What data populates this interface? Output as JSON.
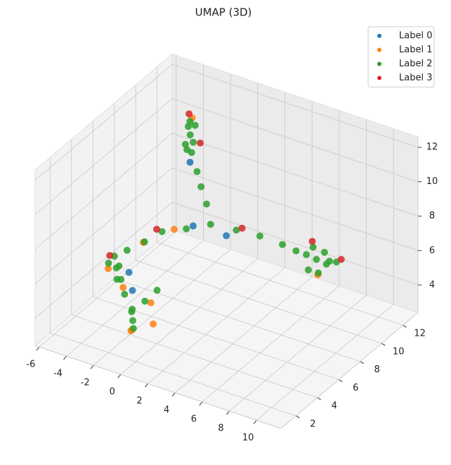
{
  "chart_data": {
    "type": "scatter3d",
    "title": "UMAP (3D)",
    "series": [
      {
        "name": "Label 0",
        "color": "#1f77b4",
        "x": [
          -1.2,
          -0.5,
          -1.5,
          1,
          -2.7
        ],
        "y": [
          8.6,
          8,
          3.6,
          9.2,
          4.8
        ],
        "z": [
          10.2,
          7,
          5.3,
          6.2,
          5.4
        ]
      },
      {
        "name": "Label 1",
        "color": "#ff7f0e",
        "x": [
          -1,
          -0.9,
          -2.5,
          -0.3,
          -3.6,
          -1.5,
          -1.6,
          7.5,
          0.5,
          -2.2
        ],
        "y": [
          2.9,
          2.7,
          4,
          3.8,
          4,
          7.5,
          9.3,
          9.5,
          3,
          5.5
        ],
        "z": [
          3.5,
          3.6,
          5,
          4.8,
          5.8,
          6.8,
          12.3,
          5.5,
          4.2,
          6.9
        ]
      },
      {
        "name": "Label 2",
        "color": "#2ca02c",
        "x": [
          -1.5,
          -1.3,
          -1.7,
          -1.4,
          -1.6,
          -1.2,
          -1.8,
          -1.5,
          -1,
          -0.7,
          -0.3,
          0,
          1.5,
          3,
          4.5,
          5.5,
          7,
          6.5,
          7.5,
          7.2,
          6.8,
          7.8,
          7.3,
          6.6,
          8,
          -1,
          -2,
          -2.5,
          -3,
          -3,
          -3.3,
          -2.8,
          -3.2,
          -3.5,
          -2.9,
          -2,
          -1,
          -1.2,
          -0.8,
          -1.4,
          -0.5,
          0
        ],
        "y": [
          9,
          9.2,
          8.8,
          9,
          9.1,
          8.9,
          9.2,
          8.7,
          9,
          9,
          9,
          9,
          9.5,
          9.8,
          10,
          10,
          10,
          9.7,
          10.3,
          10.5,
          9.5,
          10.2,
          9.8,
          10.2,
          10.6,
          8,
          7,
          6,
          5,
          4,
          4.2,
          3.8,
          4.5,
          3.9,
          4.3,
          3.5,
          3,
          3.2,
          2.8,
          3.4,
          3.5,
          4
        ],
        "z": [
          11.5,
          12,
          11,
          10.5,
          12.2,
          11.2,
          11.8,
          10.8,
          9.5,
          8.7,
          7.8,
          6.7,
          6.5,
          6.4,
          6.2,
          6.1,
          6,
          6.3,
          5.7,
          6.2,
          5.6,
          6,
          5.4,
          6.5,
          5.8,
          6.7,
          6.8,
          6.6,
          6.5,
          6,
          6.5,
          5.5,
          5.8,
          6.2,
          5.2,
          5,
          4,
          4.5,
          3.7,
          4.2,
          5,
          5.5
        ]
      },
      {
        "name": "Label 3",
        "color": "#d62728",
        "x": [
          -1.9,
          -1,
          8.2,
          -3.8,
          -2,
          2,
          6.3
        ],
        "y": [
          9.4,
          9.3,
          10.8,
          4.4,
          6.5,
          9.4,
          10.5
        ],
        "z": [
          12.4,
          11,
          5.9,
          6.3,
          7.2,
          6.8,
          6.6
        ]
      }
    ],
    "xlim": [
      -6.3,
      11.8
    ],
    "ylim": [
      0.6,
      13.4
    ],
    "zlim": [
      2.4,
      12.6
    ],
    "xticks": [
      -6,
      -4,
      -2,
      0,
      2,
      4,
      6,
      8,
      10
    ],
    "yticks": [
      2,
      4,
      6,
      8,
      10,
      12
    ],
    "zticks": [
      4,
      6,
      8,
      10,
      12
    ],
    "grid": true,
    "legend": "upper right"
  }
}
